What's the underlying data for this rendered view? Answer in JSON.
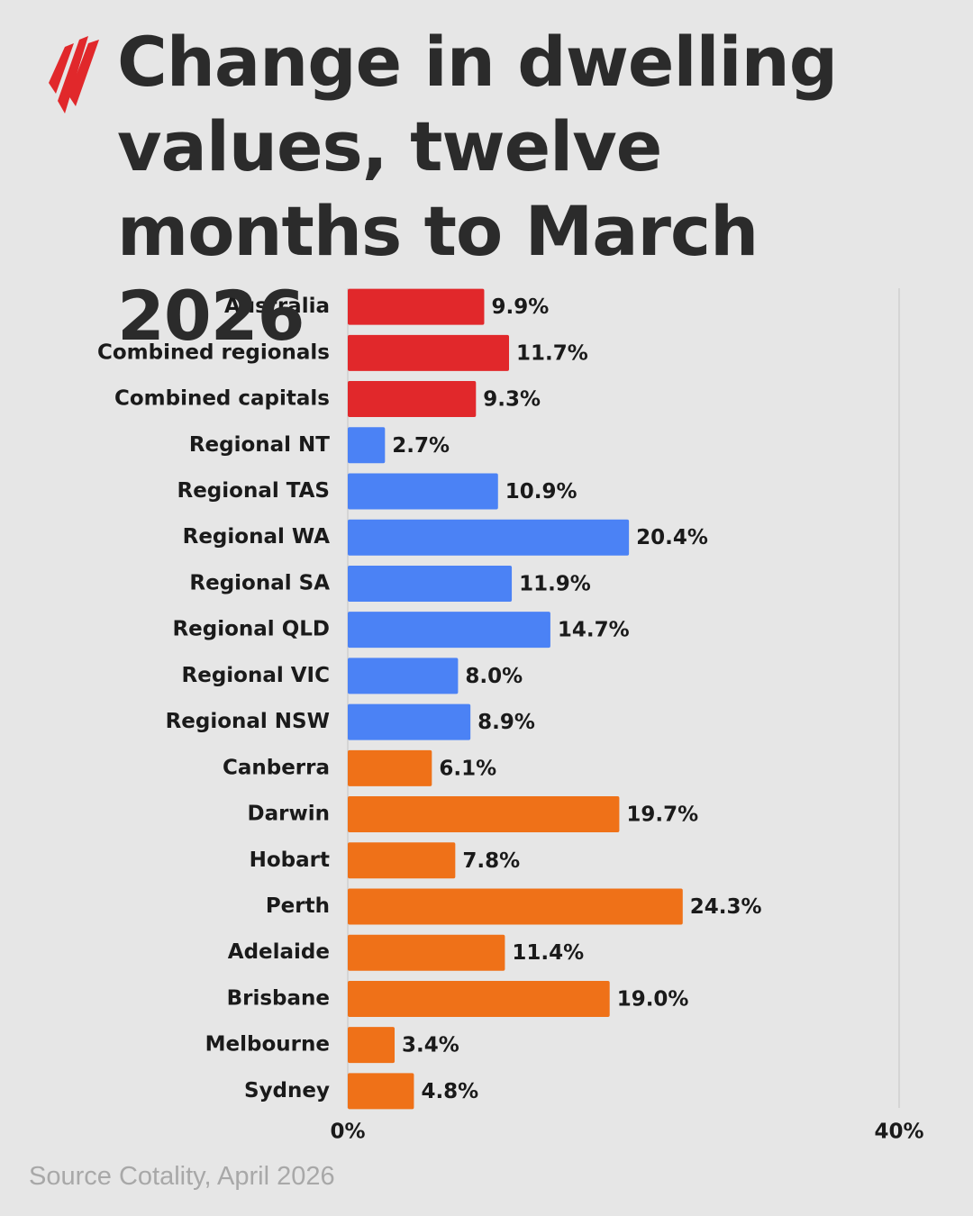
{
  "chart_data": {
    "type": "hbar",
    "title": "Change in dwelling values, twelve months to March 2026",
    "source": "Source Cotality, April 2026",
    "categories": [
      "Australia",
      "Combined regionals",
      "Combined capitals",
      "Regional NT",
      "Regional TAS",
      "Regional WA",
      "Regional SA",
      "Regional QLD",
      "Regional VIC",
      "Regional NSW",
      "Canberra",
      "Darwin",
      "Hobart",
      "Perth",
      "Adelaide",
      "Brisbane",
      "Melbourne",
      "Sydney"
    ],
    "values": [
      9.9,
      11.7,
      9.3,
      2.7,
      10.9,
      20.4,
      11.9,
      14.7,
      8.0,
      8.9,
      6.1,
      19.7,
      7.8,
      24.3,
      11.4,
      19.0,
      3.4,
      4.8
    ],
    "value_labels": [
      "9.9%",
      "11.7%",
      "9.3%",
      "2.7%",
      "10.9%",
      "20.4%",
      "11.9%",
      "14.7%",
      "8.0%",
      "8.9%",
      "6.1%",
      "19.7%",
      "7.8%",
      "24.3%",
      "11.4%",
      "19.0%",
      "3.4%",
      "4.8%"
    ],
    "colors": [
      "#e1282b",
      "#e1282b",
      "#e1282b",
      "#4b82f5",
      "#4b82f5",
      "#4b82f5",
      "#4b82f5",
      "#4b82f5",
      "#4b82f5",
      "#4b82f5",
      "#ef7118",
      "#ef7118",
      "#ef7118",
      "#ef7118",
      "#ef7118",
      "#ef7118",
      "#ef7118",
      "#ef7118"
    ],
    "xlim": [
      0,
      40
    ],
    "xticks": [
      {
        "value": 0,
        "label": "0%"
      },
      {
        "value": 40,
        "label": "40%"
      }
    ],
    "grid": true
  }
}
